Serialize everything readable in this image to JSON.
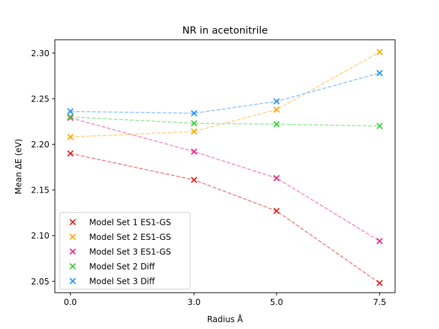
{
  "chart_data": {
    "type": "line",
    "title": "NR in acetonitrile",
    "xlabel": "Radius Å",
    "ylabel": "Mean ΔE (eV)",
    "x": [
      0.0,
      3.0,
      5.0,
      7.5
    ],
    "x_tick_labels": [
      "0.0",
      "3.0",
      "5.0",
      "7.5"
    ],
    "y_ticks": [
      2.05,
      2.1,
      2.15,
      2.2,
      2.25,
      2.3
    ],
    "y_tick_labels": [
      "2.05",
      "2.10",
      "2.15",
      "2.20",
      "2.25",
      "2.30"
    ],
    "xlim": [
      -0.375,
      7.875
    ],
    "ylim": [
      2.0375,
      2.3145
    ],
    "marker": "x",
    "line_style": "dashed",
    "legend_position": "lower-left",
    "series": [
      {
        "name": "Model Set 1 ES1-GS",
        "color": "#e31a1c",
        "line_color": "#f08080",
        "values": [
          2.19,
          2.161,
          2.127,
          2.048
        ]
      },
      {
        "name": "Model Set 2 ES1-GS",
        "color": "#ffa500",
        "line_color": "#ffd27f",
        "values": [
          2.208,
          2.214,
          2.238,
          2.301
        ]
      },
      {
        "name": "Model Set 3 ES1-GS",
        "color": "#e7298a",
        "line_color": "#f38cc4",
        "values": [
          2.229,
          2.192,
          2.163,
          2.094
        ]
      },
      {
        "name": "Model Set 2 Diff",
        "color": "#32cd32",
        "line_color": "#99e699",
        "values": [
          2.23,
          2.223,
          2.222,
          2.22
        ]
      },
      {
        "name": "Model Set 3 Diff",
        "color": "#1e90ff",
        "line_color": "#8ec7ff",
        "values": [
          2.236,
          2.234,
          2.247,
          2.278
        ]
      }
    ]
  }
}
